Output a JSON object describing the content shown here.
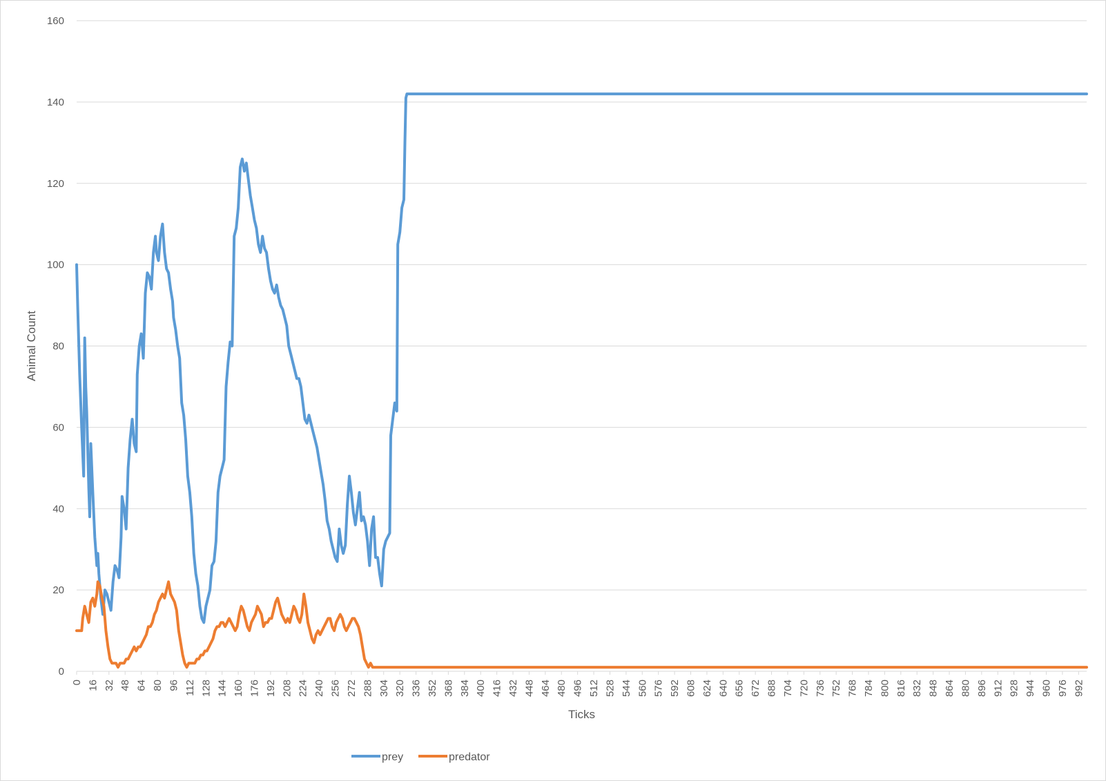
{
  "chart_data": {
    "type": "line",
    "title": "",
    "xlabel": "Ticks",
    "ylabel": "Animal Count",
    "xlim": [
      0,
      1000
    ],
    "ylim": [
      0,
      160
    ],
    "yticks": [
      0,
      20,
      40,
      60,
      80,
      100,
      120,
      140,
      160
    ],
    "xtick_step": 16,
    "grid": "horizontal",
    "legend_position": "bottom",
    "series": [
      {
        "name": "prey",
        "color": "#5b9bd5",
        "points": [
          [
            0,
            100
          ],
          [
            1,
            90
          ],
          [
            3,
            73
          ],
          [
            5,
            60
          ],
          [
            7,
            48
          ],
          [
            8,
            82
          ],
          [
            9,
            70
          ],
          [
            10,
            64
          ],
          [
            12,
            45
          ],
          [
            13,
            38
          ],
          [
            14,
            56
          ],
          [
            16,
            44
          ],
          [
            18,
            33
          ],
          [
            20,
            26
          ],
          [
            21,
            29
          ],
          [
            22,
            24
          ],
          [
            24,
            18
          ],
          [
            26,
            14
          ],
          [
            28,
            20
          ],
          [
            30,
            19
          ],
          [
            32,
            17
          ],
          [
            34,
            15
          ],
          [
            36,
            22
          ],
          [
            38,
            26
          ],
          [
            40,
            25
          ],
          [
            42,
            23
          ],
          [
            44,
            33
          ],
          [
            45,
            43
          ],
          [
            47,
            40
          ],
          [
            49,
            35
          ],
          [
            51,
            50
          ],
          [
            53,
            57
          ],
          [
            55,
            62
          ],
          [
            57,
            56
          ],
          [
            59,
            54
          ],
          [
            60,
            73
          ],
          [
            62,
            80
          ],
          [
            64,
            83
          ],
          [
            66,
            77
          ],
          [
            68,
            93
          ],
          [
            70,
            98
          ],
          [
            72,
            97
          ],
          [
            74,
            94
          ],
          [
            76,
            103
          ],
          [
            78,
            107
          ],
          [
            79,
            103
          ],
          [
            81,
            101
          ],
          [
            83,
            107
          ],
          [
            85,
            110
          ],
          [
            87,
            103
          ],
          [
            89,
            99
          ],
          [
            91,
            98
          ],
          [
            93,
            94
          ],
          [
            95,
            91
          ],
          [
            96,
            87
          ],
          [
            98,
            84
          ],
          [
            100,
            80
          ],
          [
            102,
            77
          ],
          [
            104,
            66
          ],
          [
            106,
            63
          ],
          [
            108,
            57
          ],
          [
            110,
            48
          ],
          [
            112,
            44
          ],
          [
            114,
            38
          ],
          [
            116,
            29
          ],
          [
            118,
            24
          ],
          [
            120,
            21
          ],
          [
            122,
            16
          ],
          [
            124,
            13
          ],
          [
            126,
            12
          ],
          [
            128,
            16
          ],
          [
            130,
            18
          ],
          [
            132,
            20
          ],
          [
            134,
            26
          ],
          [
            136,
            27
          ],
          [
            138,
            32
          ],
          [
            140,
            44
          ],
          [
            142,
            48
          ],
          [
            144,
            50
          ],
          [
            146,
            52
          ],
          [
            148,
            70
          ],
          [
            150,
            76
          ],
          [
            152,
            81
          ],
          [
            154,
            80
          ],
          [
            156,
            107
          ],
          [
            158,
            109
          ],
          [
            160,
            114
          ],
          [
            162,
            124
          ],
          [
            164,
            126
          ],
          [
            166,
            123
          ],
          [
            168,
            125
          ],
          [
            170,
            121
          ],
          [
            172,
            117
          ],
          [
            174,
            114
          ],
          [
            176,
            111
          ],
          [
            178,
            109
          ],
          [
            180,
            105
          ],
          [
            182,
            103
          ],
          [
            184,
            107
          ],
          [
            186,
            104
          ],
          [
            188,
            103
          ],
          [
            190,
            99
          ],
          [
            192,
            96
          ],
          [
            194,
            94
          ],
          [
            196,
            93
          ],
          [
            198,
            95
          ],
          [
            200,
            92
          ],
          [
            202,
            90
          ],
          [
            204,
            89
          ],
          [
            206,
            87
          ],
          [
            208,
            85
          ],
          [
            210,
            80
          ],
          [
            212,
            78
          ],
          [
            214,
            76
          ],
          [
            216,
            74
          ],
          [
            218,
            72
          ],
          [
            220,
            72
          ],
          [
            222,
            70
          ],
          [
            224,
            66
          ],
          [
            226,
            62
          ],
          [
            228,
            61
          ],
          [
            230,
            63
          ],
          [
            232,
            61
          ],
          [
            234,
            59
          ],
          [
            236,
            57
          ],
          [
            238,
            55
          ],
          [
            240,
            52
          ],
          [
            242,
            49
          ],
          [
            244,
            46
          ],
          [
            246,
            42
          ],
          [
            248,
            37
          ],
          [
            250,
            35
          ],
          [
            252,
            32
          ],
          [
            254,
            30
          ],
          [
            256,
            28
          ],
          [
            258,
            27
          ],
          [
            260,
            35
          ],
          [
            262,
            31
          ],
          [
            264,
            29
          ],
          [
            266,
            31
          ],
          [
            268,
            41
          ],
          [
            270,
            48
          ],
          [
            272,
            44
          ],
          [
            274,
            39
          ],
          [
            276,
            36
          ],
          [
            278,
            40
          ],
          [
            280,
            44
          ],
          [
            282,
            37
          ],
          [
            284,
            38
          ],
          [
            286,
            36
          ],
          [
            288,
            32
          ],
          [
            290,
            26
          ],
          [
            292,
            35
          ],
          [
            294,
            38
          ],
          [
            296,
            28
          ],
          [
            298,
            28
          ],
          [
            300,
            24
          ],
          [
            302,
            21
          ],
          [
            304,
            30
          ],
          [
            306,
            32
          ],
          [
            308,
            33
          ],
          [
            310,
            34
          ],
          [
            311,
            58
          ],
          [
            313,
            62
          ],
          [
            315,
            66
          ],
          [
            317,
            64
          ],
          [
            318,
            105
          ],
          [
            320,
            108
          ],
          [
            322,
            114
          ],
          [
            324,
            116
          ],
          [
            325,
            130
          ],
          [
            326,
            141
          ],
          [
            327,
            142
          ],
          [
            1000,
            142
          ]
        ]
      },
      {
        "name": "predator",
        "color": "#ed7d31",
        "points": [
          [
            0,
            10
          ],
          [
            1,
            10
          ],
          [
            3,
            10
          ],
          [
            5,
            10
          ],
          [
            6,
            13
          ],
          [
            8,
            16
          ],
          [
            10,
            14
          ],
          [
            12,
            12
          ],
          [
            14,
            17
          ],
          [
            16,
            18
          ],
          [
            18,
            16
          ],
          [
            20,
            19
          ],
          [
            21,
            22
          ],
          [
            23,
            21
          ],
          [
            25,
            18
          ],
          [
            27,
            16
          ],
          [
            29,
            10
          ],
          [
            31,
            6
          ],
          [
            33,
            3
          ],
          [
            35,
            2
          ],
          [
            37,
            2
          ],
          [
            39,
            2
          ],
          [
            41,
            1
          ],
          [
            43,
            2
          ],
          [
            45,
            2
          ],
          [
            47,
            2
          ],
          [
            49,
            3
          ],
          [
            51,
            3
          ],
          [
            53,
            4
          ],
          [
            55,
            5
          ],
          [
            57,
            6
          ],
          [
            59,
            5
          ],
          [
            61,
            6
          ],
          [
            63,
            6
          ],
          [
            65,
            7
          ],
          [
            67,
            8
          ],
          [
            69,
            9
          ],
          [
            71,
            11
          ],
          [
            73,
            11
          ],
          [
            75,
            12
          ],
          [
            77,
            14
          ],
          [
            79,
            15
          ],
          [
            81,
            17
          ],
          [
            83,
            18
          ],
          [
            85,
            19
          ],
          [
            87,
            18
          ],
          [
            89,
            20
          ],
          [
            91,
            22
          ],
          [
            93,
            19
          ],
          [
            95,
            18
          ],
          [
            97,
            17
          ],
          [
            99,
            15
          ],
          [
            101,
            10
          ],
          [
            103,
            7
          ],
          [
            105,
            4
          ],
          [
            107,
            2
          ],
          [
            109,
            1
          ],
          [
            111,
            2
          ],
          [
            113,
            2
          ],
          [
            115,
            2
          ],
          [
            117,
            2
          ],
          [
            119,
            3
          ],
          [
            121,
            3
          ],
          [
            123,
            4
          ],
          [
            125,
            4
          ],
          [
            127,
            5
          ],
          [
            129,
            5
          ],
          [
            131,
            6
          ],
          [
            133,
            7
          ],
          [
            135,
            8
          ],
          [
            137,
            10
          ],
          [
            139,
            11
          ],
          [
            141,
            11
          ],
          [
            143,
            12
          ],
          [
            145,
            12
          ],
          [
            147,
            11
          ],
          [
            149,
            12
          ],
          [
            151,
            13
          ],
          [
            153,
            12
          ],
          [
            155,
            11
          ],
          [
            157,
            10
          ],
          [
            159,
            11
          ],
          [
            161,
            14
          ],
          [
            163,
            16
          ],
          [
            165,
            15
          ],
          [
            167,
            13
          ],
          [
            169,
            11
          ],
          [
            171,
            10
          ],
          [
            173,
            12
          ],
          [
            175,
            13
          ],
          [
            177,
            14
          ],
          [
            179,
            16
          ],
          [
            181,
            15
          ],
          [
            183,
            14
          ],
          [
            185,
            11
          ],
          [
            187,
            12
          ],
          [
            189,
            12
          ],
          [
            191,
            13
          ],
          [
            193,
            13
          ],
          [
            195,
            15
          ],
          [
            197,
            17
          ],
          [
            199,
            18
          ],
          [
            201,
            16
          ],
          [
            203,
            14
          ],
          [
            205,
            13
          ],
          [
            207,
            12
          ],
          [
            209,
            13
          ],
          [
            211,
            12
          ],
          [
            213,
            14
          ],
          [
            215,
            16
          ],
          [
            217,
            15
          ],
          [
            219,
            13
          ],
          [
            221,
            12
          ],
          [
            223,
            14
          ],
          [
            225,
            19
          ],
          [
            227,
            16
          ],
          [
            229,
            12
          ],
          [
            231,
            10
          ],
          [
            233,
            8
          ],
          [
            235,
            7
          ],
          [
            237,
            9
          ],
          [
            239,
            10
          ],
          [
            241,
            9
          ],
          [
            243,
            10
          ],
          [
            245,
            11
          ],
          [
            247,
            12
          ],
          [
            249,
            13
          ],
          [
            251,
            13
          ],
          [
            253,
            11
          ],
          [
            255,
            10
          ],
          [
            257,
            12
          ],
          [
            259,
            13
          ],
          [
            261,
            14
          ],
          [
            263,
            13
          ],
          [
            265,
            11
          ],
          [
            267,
            10
          ],
          [
            269,
            11
          ],
          [
            271,
            12
          ],
          [
            273,
            13
          ],
          [
            275,
            13
          ],
          [
            277,
            12
          ],
          [
            279,
            11
          ],
          [
            281,
            9
          ],
          [
            283,
            6
          ],
          [
            285,
            3
          ],
          [
            287,
            2
          ],
          [
            289,
            1
          ],
          [
            291,
            2
          ],
          [
            293,
            1
          ],
          [
            1000,
            1
          ]
        ]
      }
    ]
  }
}
